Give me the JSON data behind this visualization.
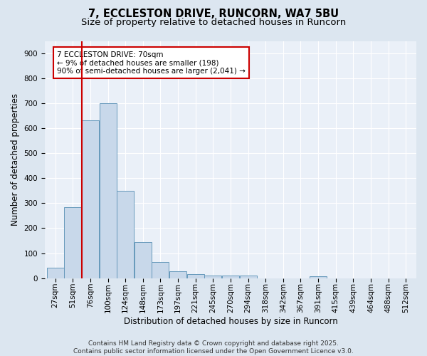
{
  "title_line1": "7, ECCLESTON DRIVE, RUNCORN, WA7 5BU",
  "title_line2": "Size of property relative to detached houses in Runcorn",
  "xlabel": "Distribution of detached houses by size in Runcorn",
  "ylabel": "Number of detached properties",
  "bar_labels": [
    "27sqm",
    "51sqm",
    "76sqm",
    "100sqm",
    "124sqm",
    "148sqm",
    "173sqm",
    "197sqm",
    "221sqm",
    "245sqm",
    "270sqm",
    "294sqm",
    "318sqm",
    "342sqm",
    "367sqm",
    "391sqm",
    "415sqm",
    "439sqm",
    "464sqm",
    "488sqm",
    "512sqm"
  ],
  "bar_values": [
    42,
    285,
    632,
    700,
    350,
    143,
    65,
    28,
    15,
    11,
    10,
    10,
    0,
    0,
    0,
    7,
    0,
    0,
    0,
    0,
    0
  ],
  "bar_color": "#c8d8ea",
  "bar_edge_color": "#6699bb",
  "red_line_x": 1.5,
  "annotation_text": "7 ECCLESTON DRIVE: 70sqm\n← 9% of detached houses are smaller (198)\n90% of semi-detached houses are larger (2,041) →",
  "annotation_box_color": "#ffffff",
  "annotation_box_edge_color": "#cc0000",
  "red_line_color": "#cc0000",
  "ylim": [
    0,
    950
  ],
  "yticks": [
    0,
    100,
    200,
    300,
    400,
    500,
    600,
    700,
    800,
    900
  ],
  "bg_color": "#dce6f0",
  "plot_bg_color": "#eaf0f8",
  "grid_color": "#ffffff",
  "footer_text": "Contains HM Land Registry data © Crown copyright and database right 2025.\nContains public sector information licensed under the Open Government Licence v3.0.",
  "title_fontsize": 10.5,
  "subtitle_fontsize": 9.5,
  "axis_label_fontsize": 8.5,
  "tick_fontsize": 7.5,
  "annotation_fontsize": 7.5,
  "footer_fontsize": 6.5
}
